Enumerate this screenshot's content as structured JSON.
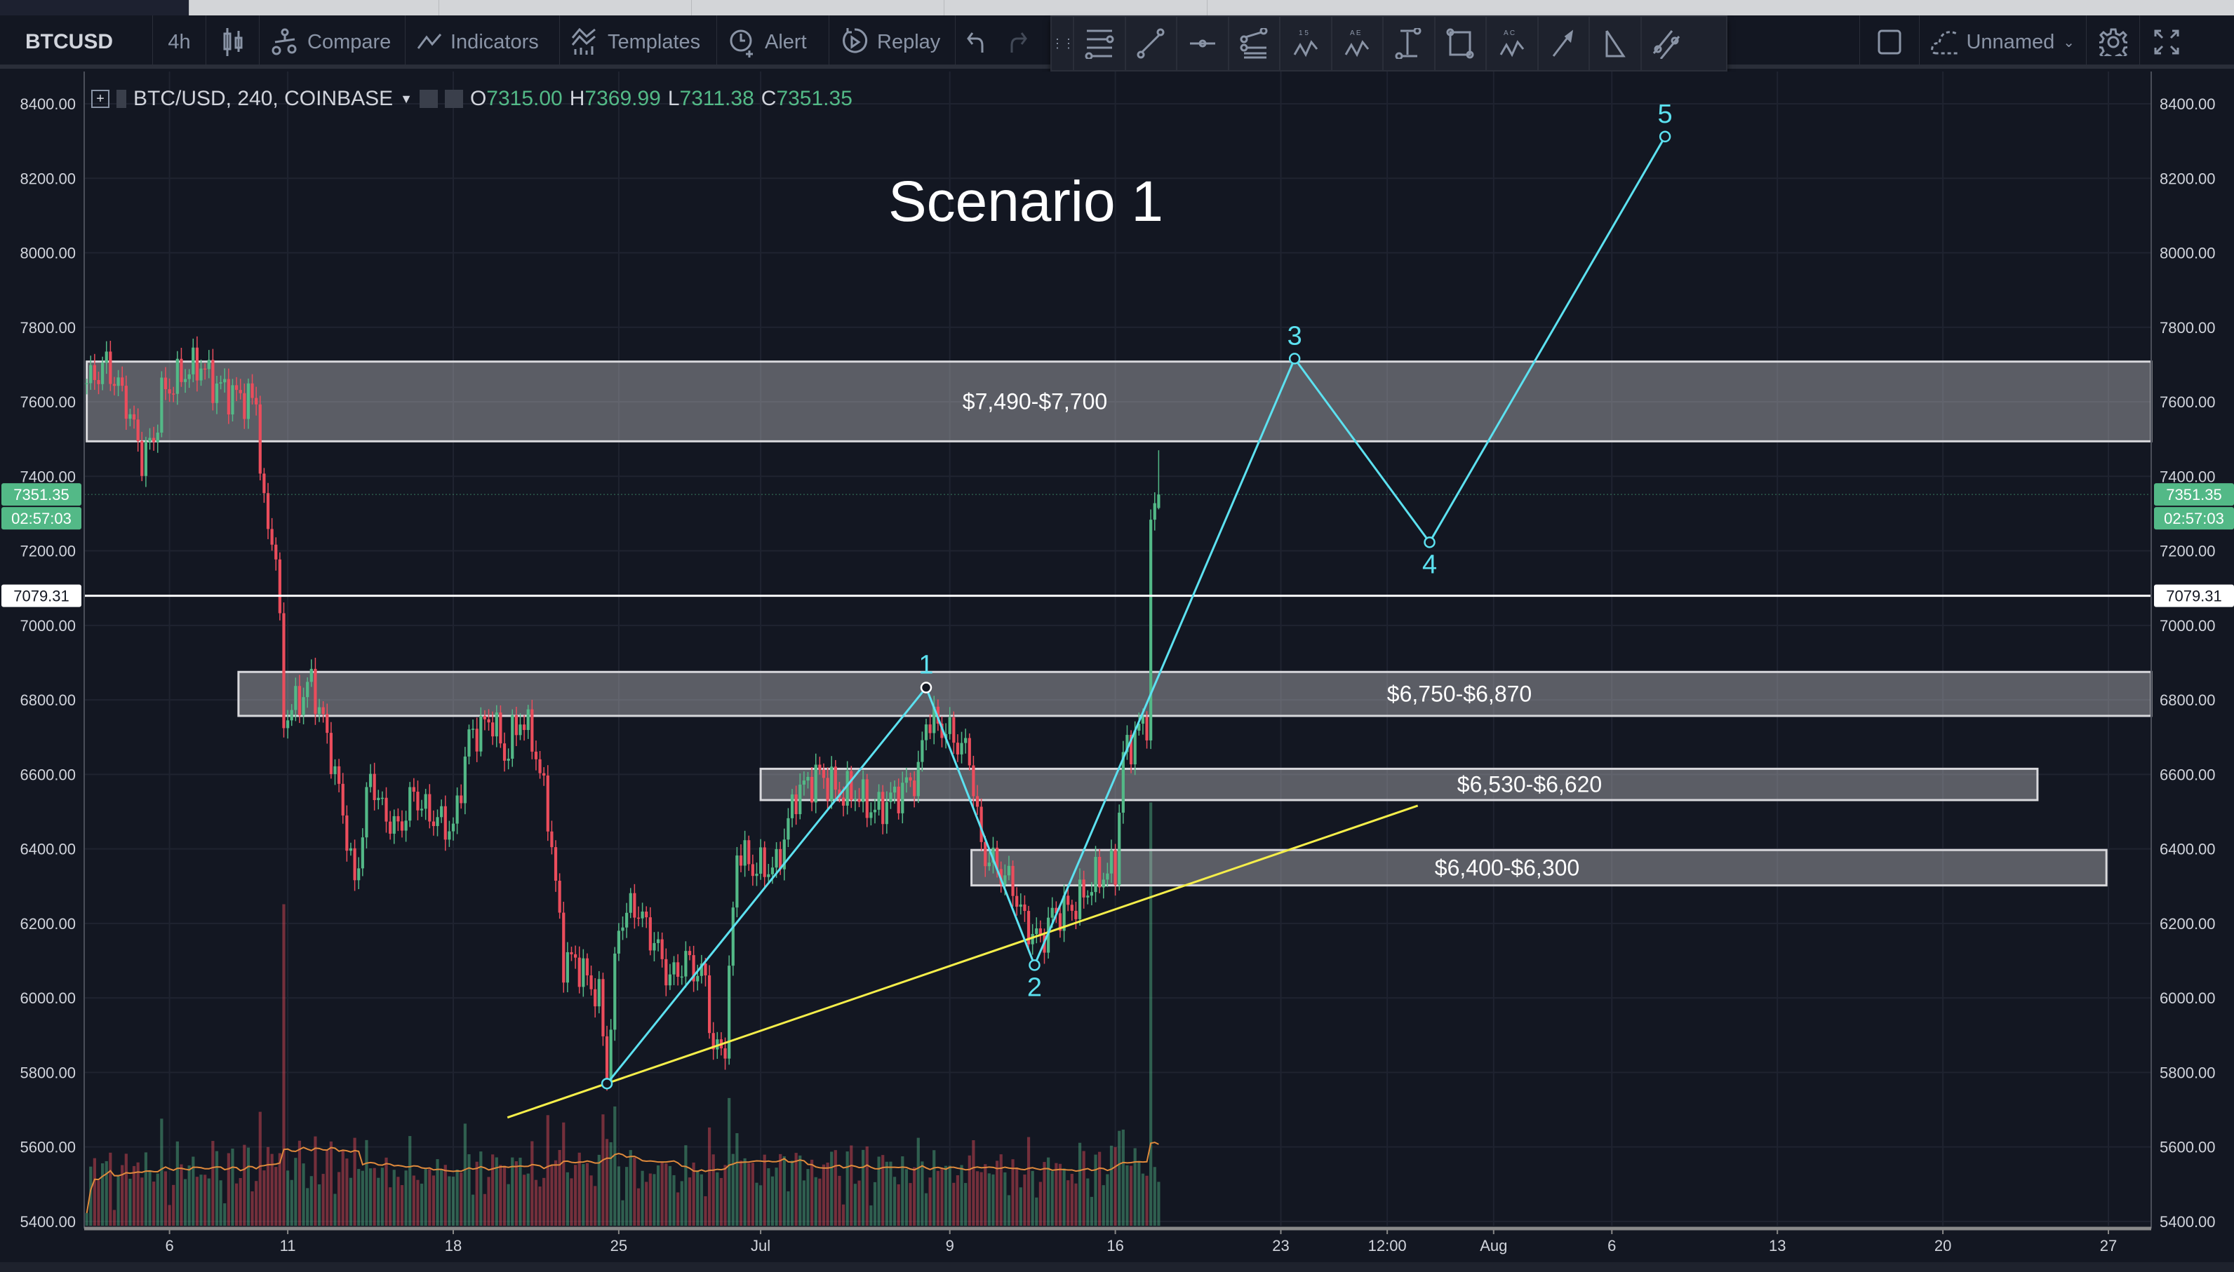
{
  "toolbar": {
    "symbol": "BTCUSD",
    "interval": "4h",
    "compare": "Compare",
    "indicators": "Indicators",
    "templates": "Templates",
    "alert": "Alert",
    "replay": "Replay",
    "layout_name": "Unnamed"
  },
  "drawing_tools": [
    "horizontal-lines",
    "trend-line",
    "horizontal-ray",
    "pitchfork",
    "elliott-wave-15",
    "elliott-wave-ae",
    "measure",
    "rectangle",
    "abc-pattern",
    "arrow",
    "triangle",
    "parallel-channel"
  ],
  "legend": {
    "title": "BTC/USD, 240, COINBASE",
    "o_label": "O",
    "o": "7315.00",
    "h_label": "H",
    "h": "7369.99",
    "l_label": "L",
    "l": "7311.38",
    "c_label": "C",
    "c": "7351.35"
  },
  "colors": {
    "up": "#53b987",
    "down": "#eb4d5c",
    "wave": "#5ce1f0",
    "trend": "#f5ee4a",
    "background": "#131722"
  },
  "chart_data": {
    "type": "candlestick",
    "title": "Scenario 1",
    "ylim": [
      5400,
      8400
    ],
    "y_ticks": [
      "8400.00",
      "8200.00",
      "8000.00",
      "7800.00",
      "7600.00",
      "7400.00",
      "7200.00",
      "7000.00",
      "6800.00",
      "6600.00",
      "6400.00",
      "6200.00",
      "6000.00",
      "5800.00",
      "5600.00",
      "5400.00"
    ],
    "x_ticks": [
      {
        "label": "6",
        "date": "06-06 00:00"
      },
      {
        "label": "11",
        "date": "06-11 00:00"
      },
      {
        "label": "18",
        "date": "06-18 00:00"
      },
      {
        "label": "25",
        "date": "06-25 00:00"
      },
      {
        "label": "Jul",
        "date": "07-01 00:00"
      },
      {
        "label": "9",
        "date": "07-09 00:00"
      },
      {
        "label": "16",
        "date": "07-16 00:00"
      },
      {
        "label": "23",
        "date": "07-23 00:00"
      },
      {
        "label": "12:00",
        "date": "07-27 12:00"
      },
      {
        "label": "Aug",
        "date": "08-01 00:00"
      },
      {
        "label": "6",
        "date": "08-06 00:00"
      },
      {
        "label": "13",
        "date": "08-13 00:00"
      },
      {
        "label": "20",
        "date": "08-20 00:00"
      },
      {
        "label": "27",
        "date": "08-27 00:00"
      }
    ],
    "price_path": [
      [
        "06-02 12:00",
        7650
      ],
      [
        "06-03 08:00",
        7700
      ],
      [
        "06-04 04:00",
        7600
      ],
      [
        "06-04 20:00",
        7450
      ],
      [
        "06-05 08:00",
        7500
      ],
      [
        "06-05 16:00",
        7620
      ],
      [
        "06-06 16:00",
        7680
      ],
      [
        "06-07 08:00",
        7700
      ],
      [
        "06-07 20:00",
        7650
      ],
      [
        "06-08 16:00",
        7620
      ],
      [
        "06-09 16:00",
        7600
      ],
      [
        "06-10 00:00",
        7300
      ],
      [
        "06-10 12:00",
        7200
      ],
      [
        "06-10 20:00",
        6750
      ],
      [
        "06-11 12:00",
        6800
      ],
      [
        "06-12 00:00",
        6850
      ],
      [
        "06-12 16:00",
        6700
      ],
      [
        "06-13 08:00",
        6500
      ],
      [
        "06-13 20:00",
        6300
      ],
      [
        "06-14 12:00",
        6600
      ],
      [
        "06-15 00:00",
        6500
      ],
      [
        "06-15 16:00",
        6450
      ],
      [
        "06-16 08:00",
        6550
      ],
      [
        "06-16 20:00",
        6500
      ],
      [
        "06-18 00:00",
        6450
      ],
      [
        "06-18 16:00",
        6700
      ],
      [
        "06-19 16:00",
        6750
      ],
      [
        "06-20 04:00",
        6650
      ],
      [
        "06-20 20:00",
        6750
      ],
      [
        "06-21 08:00",
        6700
      ],
      [
        "06-22 00:00",
        6500
      ],
      [
        "06-22 16:00",
        6100
      ],
      [
        "06-23 04:00",
        6100
      ],
      [
        "06-24 04:00",
        6000
      ],
      [
        "06-24 12:00",
        5800
      ],
      [
        "06-25 00:00",
        6200
      ],
      [
        "06-25 16:00",
        6250
      ],
      [
        "06-26 12:00",
        6150
      ],
      [
        "06-27 04:00",
        6050
      ],
      [
        "06-27 20:00",
        6100
      ],
      [
        "06-28 16:00",
        6050
      ],
      [
        "06-29 00:00",
        5850
      ],
      [
        "06-29 12:00",
        5880
      ],
      [
        "06-30 00:00",
        6400
      ],
      [
        "06-30 16:00",
        6350
      ],
      [
        "07-01 16:00",
        6350
      ],
      [
        "07-02 12:00",
        6550
      ],
      [
        "07-03 12:00",
        6600
      ],
      [
        "07-04 08:00",
        6550
      ],
      [
        "07-05 00:00",
        6550
      ],
      [
        "07-05 20:00",
        6500
      ],
      [
        "07-06 20:00",
        6550
      ],
      [
        "07-07 16:00",
        6600
      ],
      [
        "07-08 00:00",
        6750
      ],
      [
        "07-08 20:00",
        6720
      ],
      [
        "07-09 20:00",
        6650
      ],
      [
        "07-10 08:00",
        6400
      ],
      [
        "07-11 00:00",
        6350
      ],
      [
        "07-11 16:00",
        6300
      ],
      [
        "07-12 04:00",
        6200
      ],
      [
        "07-12 20:00",
        6150
      ],
      [
        "07-13 08:00",
        6220
      ],
      [
        "07-14 08:00",
        6250
      ],
      [
        "07-15 04:00",
        6320
      ],
      [
        "07-16 00:00",
        6350
      ],
      [
        "07-16 08:00",
        6650
      ],
      [
        "07-17 00:00",
        6720
      ],
      [
        "07-17 08:00",
        6750
      ],
      [
        "07-17 12:00",
        7250
      ],
      [
        "07-17 16:00",
        7315
      ]
    ],
    "last_candle": {
      "open": 7315.0,
      "high": 7369.99,
      "low": 7311.38,
      "close": 7351.35
    },
    "zones": [
      {
        "label": "$7,490-$7,700",
        "low": 7494,
        "high": 7708,
        "start": "06-02 12:00",
        "end": "right-edge"
      },
      {
        "label": "$6,750-$6,870",
        "low": 6757,
        "high": 6875,
        "start": "06-08 22:00",
        "end": "right-edge"
      },
      {
        "label": "$6,530-$6,620",
        "low": 6531,
        "high": 6615,
        "start": "07-01 00:00",
        "end": "08-24 00:00"
      },
      {
        "label": "$6,400-$6,300",
        "low": 6302,
        "high": 6397,
        "start": "07-09 22:00",
        "end": "08-26 22:00"
      }
    ],
    "horizontal_line": {
      "price": 7079.31,
      "label": "7079.31"
    },
    "last_price": {
      "price": 7351.35,
      "label": "7351.35",
      "countdown": "02:57:03"
    },
    "trend_line": [
      [
        "06-20 07:00",
        5679
      ],
      [
        "07-28 19:00",
        6516
      ]
    ],
    "wave": [
      {
        "label": "",
        "date": "06-24 12:00",
        "price": 5770
      },
      {
        "label": "1",
        "date": "07-08 00:00",
        "price": 6833
      },
      {
        "label": "2",
        "date": "07-12 14:00",
        "price": 6088
      },
      {
        "label": "3",
        "date": "07-23 14:00",
        "price": 7716
      },
      {
        "label": "4",
        "date": "07-29 07:00",
        "price": 7223
      },
      {
        "label": "5",
        "date": "08-08 06:00",
        "price": 8312
      }
    ]
  }
}
